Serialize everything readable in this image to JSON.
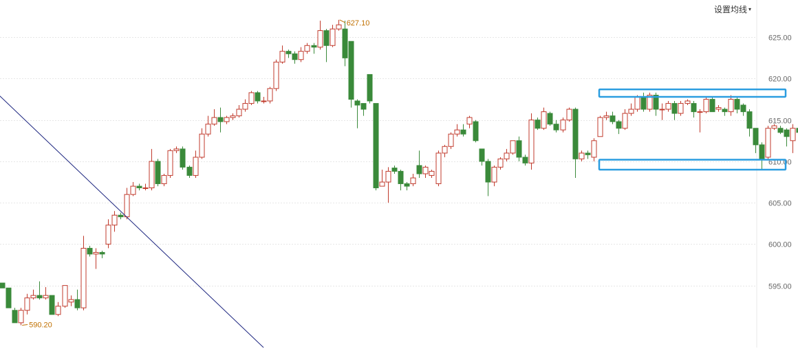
{
  "toolbar": {
    "ma_settings_label": "设置均线",
    "ma_settings_caret": "▾"
  },
  "colors": {
    "up": "#c0392b",
    "down": "#3a8a3a",
    "grid": "#e6e6e6",
    "trend": "#1a237e",
    "highlight": "#2a9de0",
    "annotation": "#c07000",
    "axis_text": "#666666"
  },
  "chart_data": {
    "type": "candlestick",
    "ylim": [
      587.5,
      629.5
    ],
    "y_ticks": [
      595,
      600,
      605,
      610,
      615,
      620,
      625
    ],
    "y_tick_labels": [
      "595.00",
      "600.00",
      "605.00",
      "610.00",
      "615.00",
      "620.00",
      "625.00"
    ],
    "grid": true,
    "candles": [
      [
        595.3,
        594.7,
        595.3,
        594.7
      ],
      [
        594.7,
        592.3,
        594.7,
        592.3
      ],
      [
        592.0,
        590.5,
        592.3,
        590.5
      ],
      [
        590.5,
        592.0,
        592.3,
        590.2
      ],
      [
        592.0,
        593.5,
        594.0,
        591.5
      ],
      [
        593.5,
        593.8,
        594.5,
        593.3
      ],
      [
        593.8,
        593.5,
        595.5,
        593.3
      ],
      [
        593.5,
        593.8,
        594.8,
        593.3
      ],
      [
        593.8,
        591.5,
        593.8,
        591.5
      ],
      [
        591.5,
        592.5,
        593.0,
        591.3
      ],
      [
        592.5,
        595.0,
        595.0,
        592.3
      ],
      [
        593.0,
        593.3,
        593.8,
        592.5
      ],
      [
        593.3,
        592.3,
        594.5,
        592.0
      ],
      [
        592.3,
        599.5,
        601.0,
        592.0
      ],
      [
        599.5,
        598.8,
        599.8,
        598.5
      ],
      [
        598.8,
        599.0,
        599.5,
        597.0
      ],
      [
        599.0,
        598.8,
        599.2,
        598.3
      ],
      [
        600.0,
        602.3,
        603.0,
        599.5
      ],
      [
        602.3,
        603.5,
        604.0,
        601.5
      ],
      [
        603.5,
        603.3,
        603.8,
        603.0
      ],
      [
        603.3,
        606.0,
        606.8,
        603.0
      ],
      [
        606.0,
        607.0,
        607.5,
        605.8
      ],
      [
        607.0,
        606.8,
        607.3,
        606.5
      ],
      [
        606.8,
        606.8,
        607.3,
        606.5
      ],
      [
        606.8,
        610.0,
        611.5,
        606.5
      ],
      [
        610.0,
        607.3,
        610.3,
        607.0
      ],
      [
        607.3,
        608.3,
        608.5,
        607.0
      ],
      [
        608.3,
        611.3,
        611.5,
        608.0
      ],
      [
        611.3,
        611.5,
        611.8,
        611.0
      ],
      [
        611.5,
        609.3,
        611.8,
        609.0
      ],
      [
        609.3,
        608.3,
        609.5,
        608.0
      ],
      [
        608.3,
        610.5,
        611.3,
        608.0
      ],
      [
        610.5,
        613.3,
        614.0,
        610.3
      ],
      [
        613.3,
        614.5,
        615.5,
        613.0
      ],
      [
        614.5,
        615.3,
        616.3,
        614.3
      ],
      [
        615.3,
        614.8,
        616.5,
        613.5
      ],
      [
        614.8,
        615.3,
        615.5,
        614.5
      ],
      [
        615.3,
        615.5,
        615.8,
        615.0
      ],
      [
        615.5,
        616.3,
        616.8,
        615.3
      ],
      [
        616.3,
        617.0,
        617.5,
        616.0
      ],
      [
        617.0,
        618.3,
        618.5,
        616.8
      ],
      [
        618.3,
        617.3,
        618.5,
        617.0
      ],
      [
        617.3,
        617.3,
        617.8,
        617.0
      ],
      [
        617.3,
        618.8,
        619.0,
        617.0
      ],
      [
        618.8,
        622.0,
        622.3,
        618.5
      ],
      [
        622.0,
        623.3,
        624.0,
        621.8
      ],
      [
        623.3,
        623.0,
        623.5,
        622.5
      ],
      [
        623.0,
        622.3,
        623.3,
        621.8
      ],
      [
        622.3,
        623.3,
        623.8,
        622.0
      ],
      [
        623.3,
        624.0,
        624.3,
        623.0
      ],
      [
        624.0,
        623.8,
        624.3,
        623.0
      ],
      [
        623.8,
        625.8,
        627.0,
        623.5
      ],
      [
        625.8,
        624.0,
        626.0,
        622.0
      ],
      [
        624.0,
        626.0,
        626.5,
        623.8
      ],
      [
        626.0,
        626.5,
        627.1,
        625.8
      ],
      [
        626.0,
        622.5,
        627.0,
        621.5
      ],
      [
        624.5,
        617.5,
        624.5,
        616.5
      ],
      [
        617.3,
        616.8,
        617.5,
        614.0
      ],
      [
        617.0,
        616.3,
        617.0,
        615.5
      ],
      [
        620.5,
        617.3,
        620.5,
        617.0
      ],
      [
        617.0,
        606.8,
        617.0,
        606.5
      ],
      [
        607.0,
        607.5,
        609.0,
        607.0
      ],
      [
        607.5,
        608.8,
        609.3,
        605.0
      ],
      [
        609.2,
        608.8,
        609.5,
        608.5
      ],
      [
        608.8,
        607.3,
        609.0,
        606.5
      ],
      [
        607.3,
        607.0,
        607.5,
        606.5
      ],
      [
        607.3,
        608.0,
        608.5,
        607.0
      ],
      [
        609.5,
        608.5,
        611.3,
        608.0
      ],
      [
        608.5,
        609.3,
        609.5,
        608.0
      ],
      [
        608.3,
        608.8,
        609.0,
        608.0
      ],
      [
        607.3,
        611.0,
        611.3,
        607.0
      ],
      [
        611.0,
        611.8,
        612.0,
        610.5
      ],
      [
        611.8,
        613.3,
        613.5,
        611.5
      ],
      [
        613.3,
        613.8,
        614.5,
        613.0
      ],
      [
        613.8,
        613.3,
        614.5,
        613.0
      ],
      [
        614.5,
        615.3,
        615.5,
        614.0
      ],
      [
        614.8,
        612.5,
        615.0,
        612.3
      ],
      [
        611.5,
        610.0,
        611.5,
        609.5
      ],
      [
        610.0,
        607.5,
        610.3,
        605.8
      ],
      [
        607.5,
        609.3,
        609.5,
        607.0
      ],
      [
        609.3,
        610.3,
        610.5,
        609.0
      ],
      [
        610.3,
        611.0,
        611.5,
        610.0
      ],
      [
        611.0,
        612.5,
        612.5,
        610.8
      ],
      [
        612.5,
        610.5,
        613.0,
        610.0
      ],
      [
        610.5,
        609.8,
        610.8,
        609.5
      ],
      [
        609.8,
        615.0,
        615.8,
        609.0
      ],
      [
        615.0,
        614.0,
        615.3,
        613.8
      ],
      [
        614.0,
        616.0,
        616.5,
        613.8
      ],
      [
        615.8,
        614.5,
        616.0,
        614.3
      ],
      [
        614.5,
        613.8,
        615.0,
        613.5
      ],
      [
        613.8,
        615.0,
        615.3,
        613.5
      ],
      [
        615.0,
        616.3,
        616.5,
        614.8
      ],
      [
        616.3,
        610.3,
        616.5,
        608.0
      ],
      [
        610.3,
        611.0,
        611.3,
        610.0
      ],
      [
        611.0,
        610.8,
        611.3,
        610.3
      ],
      [
        610.5,
        612.5,
        612.8,
        610.0
      ],
      [
        613.0,
        615.3,
        615.5,
        613.0
      ],
      [
        615.3,
        615.5,
        616.0,
        615.0
      ],
      [
        615.5,
        614.8,
        616.0,
        614.5
      ],
      [
        614.8,
        614.0,
        615.0,
        613.3
      ],
      [
        614.0,
        615.8,
        616.3,
        613.8
      ],
      [
        615.8,
        616.3,
        617.0,
        615.5
      ],
      [
        616.3,
        617.8,
        618.0,
        616.0
      ],
      [
        617.8,
        616.3,
        618.3,
        616.0
      ],
      [
        616.3,
        618.0,
        618.3,
        616.0
      ],
      [
        618.0,
        616.3,
        618.3,
        615.5
      ],
      [
        616.3,
        616.3,
        617.0,
        615.0
      ],
      [
        616.3,
        617.0,
        617.3,
        616.0
      ],
      [
        617.0,
        615.8,
        617.3,
        615.0
      ],
      [
        615.8,
        617.0,
        617.3,
        615.5
      ],
      [
        617.0,
        617.3,
        617.5,
        616.8
      ],
      [
        617.0,
        616.0,
        617.3,
        615.3
      ],
      [
        616.0,
        616.0,
        616.3,
        613.5
      ],
      [
        616.0,
        617.5,
        617.8,
        615.8
      ],
      [
        617.5,
        616.0,
        617.8,
        616.0
      ],
      [
        616.3,
        616.5,
        616.8,
        616.0
      ],
      [
        616.3,
        616.0,
        616.5,
        615.5
      ],
      [
        616.0,
        617.5,
        618.0,
        615.5
      ],
      [
        617.5,
        616.3,
        617.8,
        615.8
      ],
      [
        616.8,
        616.0,
        617.0,
        615.5
      ],
      [
        616.0,
        614.0,
        616.3,
        613.0
      ],
      [
        614.0,
        612.0,
        614.0,
        611.0
      ],
      [
        612.0,
        610.3,
        612.3,
        609.0
      ],
      [
        610.5,
        614.0,
        614.3,
        610.3
      ],
      [
        614.0,
        614.3,
        614.5,
        613.8
      ],
      [
        614.0,
        613.5,
        614.3,
        613.3
      ],
      [
        613.8,
        613.0,
        614.0,
        611.8
      ],
      [
        612.5,
        614.0,
        614.5,
        611.0
      ],
      [
        614.0,
        613.5,
        614.3,
        613.3
      ],
      [
        613.5,
        614.3,
        614.5,
        613.3
      ]
    ],
    "annotations": [
      {
        "label": "627.10",
        "price": 627.1,
        "candle_index": 54
      },
      {
        "label": "590.20",
        "price": 590.2,
        "candle_index": 3
      }
    ],
    "trendline": {
      "start": [
        -3,
        619.8
      ],
      "end": [
        42,
        587.5
      ]
    },
    "highlight_boxes": [
      {
        "price_range": [
          617.8,
          618.7
        ]
      },
      {
        "price_range": [
          609.0,
          610.2
        ]
      }
    ]
  }
}
